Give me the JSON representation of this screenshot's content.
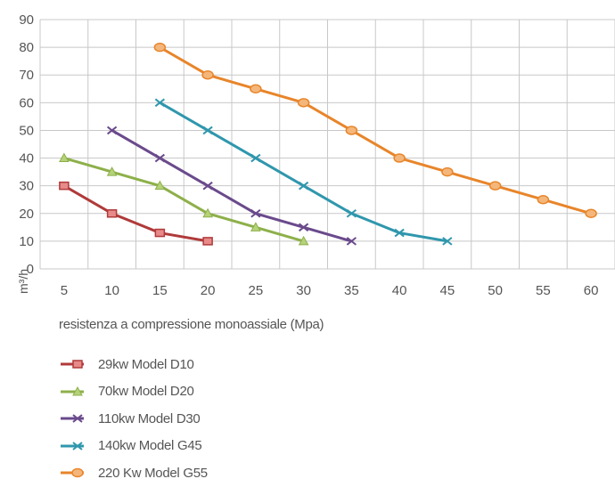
{
  "chart_data": {
    "type": "line",
    "xlabel": "resistenza a compressione monoassiale (Mpa)",
    "ylabel": "m³/h",
    "x_ticks": [
      5,
      10,
      15,
      20,
      25,
      30,
      35,
      40,
      45,
      50,
      55,
      60
    ],
    "y_ticks": [
      0,
      10,
      20,
      30,
      40,
      50,
      60,
      70,
      80,
      90
    ],
    "xlim": [
      2.5,
      62.5
    ],
    "ylim": [
      0,
      90
    ],
    "grid": true,
    "legend_position": "bottom-left",
    "series": [
      {
        "name": "29kw Model D10",
        "color": "#b03a3a",
        "marker": "square",
        "x": [
          5,
          10,
          15,
          20
        ],
        "y": [
          30,
          20,
          13,
          10
        ]
      },
      {
        "name": "70kw Model D20",
        "color": "#8db04a",
        "marker": "triangle",
        "x": [
          5,
          10,
          15,
          20,
          25,
          30
        ],
        "y": [
          40,
          35,
          30,
          20,
          15,
          10
        ]
      },
      {
        "name": "110kw Model D30",
        "color": "#6a4a8c",
        "marker": "x",
        "x": [
          10,
          15,
          20,
          25,
          30,
          35
        ],
        "y": [
          50,
          40,
          30,
          20,
          15,
          10
        ]
      },
      {
        "name": "140kw Model G45",
        "color": "#2f97ad",
        "marker": "x",
        "x": [
          15,
          20,
          25,
          30,
          35,
          40,
          45
        ],
        "y": [
          60,
          50,
          40,
          30,
          20,
          13,
          10
        ]
      },
      {
        "name": "220 Kw Model G55",
        "color": "#e8852a",
        "marker": "circle",
        "x": [
          15,
          20,
          25,
          30,
          35,
          40,
          45,
          50,
          55,
          60
        ],
        "y": [
          80,
          70,
          65,
          60,
          50,
          40,
          35,
          30,
          25,
          20
        ]
      }
    ]
  }
}
